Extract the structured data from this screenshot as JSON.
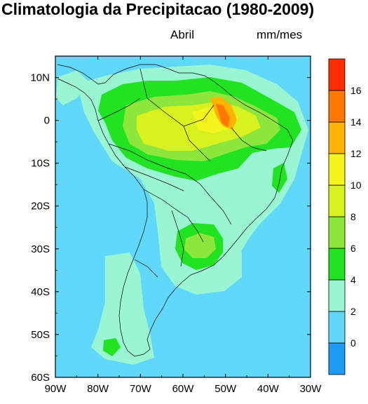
{
  "title": "Climatologia da Precipitacao (1980-2009)",
  "month_label": "Abril",
  "units_label": "mm/mes",
  "axes": {
    "lon_ticks": [
      "90W",
      "80W",
      "70W",
      "60W",
      "50W",
      "40W",
      "30W"
    ],
    "lat_ticks": [
      "10N",
      "0",
      "10S",
      "20S",
      "30S",
      "40S",
      "50S",
      "60S"
    ],
    "lon_range": [
      -90,
      -30
    ],
    "lat_range": [
      -60,
      15
    ]
  },
  "colorbar": {
    "labels": [
      "0",
      "2",
      "4",
      "6",
      "8",
      "10",
      "12",
      "14",
      "16"
    ],
    "colors": [
      "#1e9bf5",
      "#5fd8fa",
      "#9af5d2",
      "#22e322",
      "#8ce63c",
      "#d7f21e",
      "#f5f51e",
      "#ffb400",
      "#ff7800",
      "#ff2d00"
    ]
  },
  "chart_data": {
    "type": "heatmap",
    "variable": "precipitation",
    "month": "Abril",
    "units": "mm/mes",
    "levels": [
      0,
      2,
      4,
      6,
      8,
      10,
      12,
      14,
      16
    ],
    "regions": [
      {
        "area": "background ocean",
        "range": [
          0,
          2
        ]
      },
      {
        "area": "southern South America and coastal margins",
        "range": [
          2,
          4
        ]
      },
      {
        "area": "western and southern Amazon, northeast coast",
        "range": [
          4,
          6
        ]
      },
      {
        "area": "central and eastern Amazon",
        "range": [
          6,
          10
        ]
      },
      {
        "area": "Amazon river mouth",
        "range": [
          12,
          16
        ]
      },
      {
        "area": "southern Brazil / Uruguay",
        "range": [
          4,
          8
        ]
      },
      {
        "area": "southern Chile / Patagonia coast",
        "range": [
          4,
          6
        ]
      }
    ]
  }
}
